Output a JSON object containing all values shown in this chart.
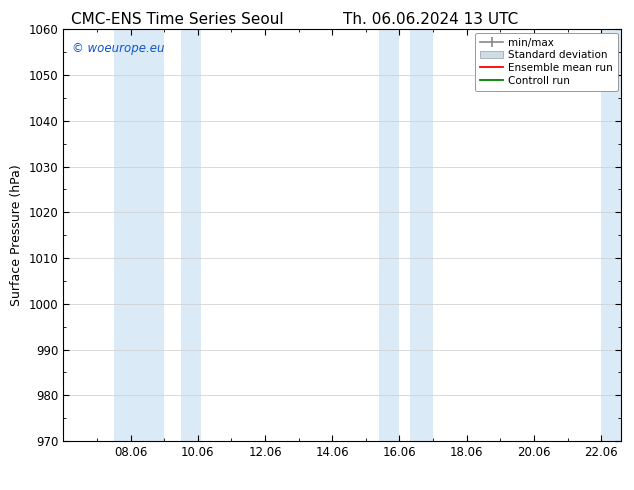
{
  "title_left": "CMC-ENS Time Series Seoul",
  "title_right": "Th. 06.06.2024 13 UTC",
  "ylabel": "Surface Pressure (hPa)",
  "ylim": [
    970,
    1060
  ],
  "yticks": [
    970,
    980,
    990,
    1000,
    1010,
    1020,
    1030,
    1040,
    1050,
    1060
  ],
  "xlim_start": 6.0,
  "xlim_end": 22.6,
  "xticks": [
    8.0,
    10.0,
    12.0,
    14.0,
    16.0,
    18.0,
    20.0,
    22.0
  ],
  "xticklabels": [
    "08.06",
    "10.06",
    "12.06",
    "14.06",
    "16.06",
    "18.06",
    "20.06",
    "22.06"
  ],
  "shaded_bands": [
    {
      "xmin": 7.5,
      "xmax": 9.0
    },
    {
      "xmin": 9.5,
      "xmax": 10.1
    },
    {
      "xmin": 15.4,
      "xmax": 16.0
    },
    {
      "xmin": 16.3,
      "xmax": 17.0
    },
    {
      "xmin": 22.0,
      "xmax": 22.6
    }
  ],
  "shade_color": "#daeaf7",
  "watermark_text": "© woeurope.eu",
  "watermark_color": "#1155cc",
  "legend_entries": [
    {
      "label": "min/max",
      "color": "#aaaaaa",
      "type": "errorbar"
    },
    {
      "label": "Standard deviation",
      "color": "#ccdde8",
      "type": "fill"
    },
    {
      "label": "Ensemble mean run",
      "color": "red",
      "type": "line"
    },
    {
      "label": "Controll run",
      "color": "green",
      "type": "line"
    }
  ],
  "background_color": "#ffffff",
  "plot_bg_color": "#ffffff",
  "title_fontsize": 11,
  "axis_fontsize": 9,
  "tick_fontsize": 8.5,
  "legend_fontsize": 7.5
}
